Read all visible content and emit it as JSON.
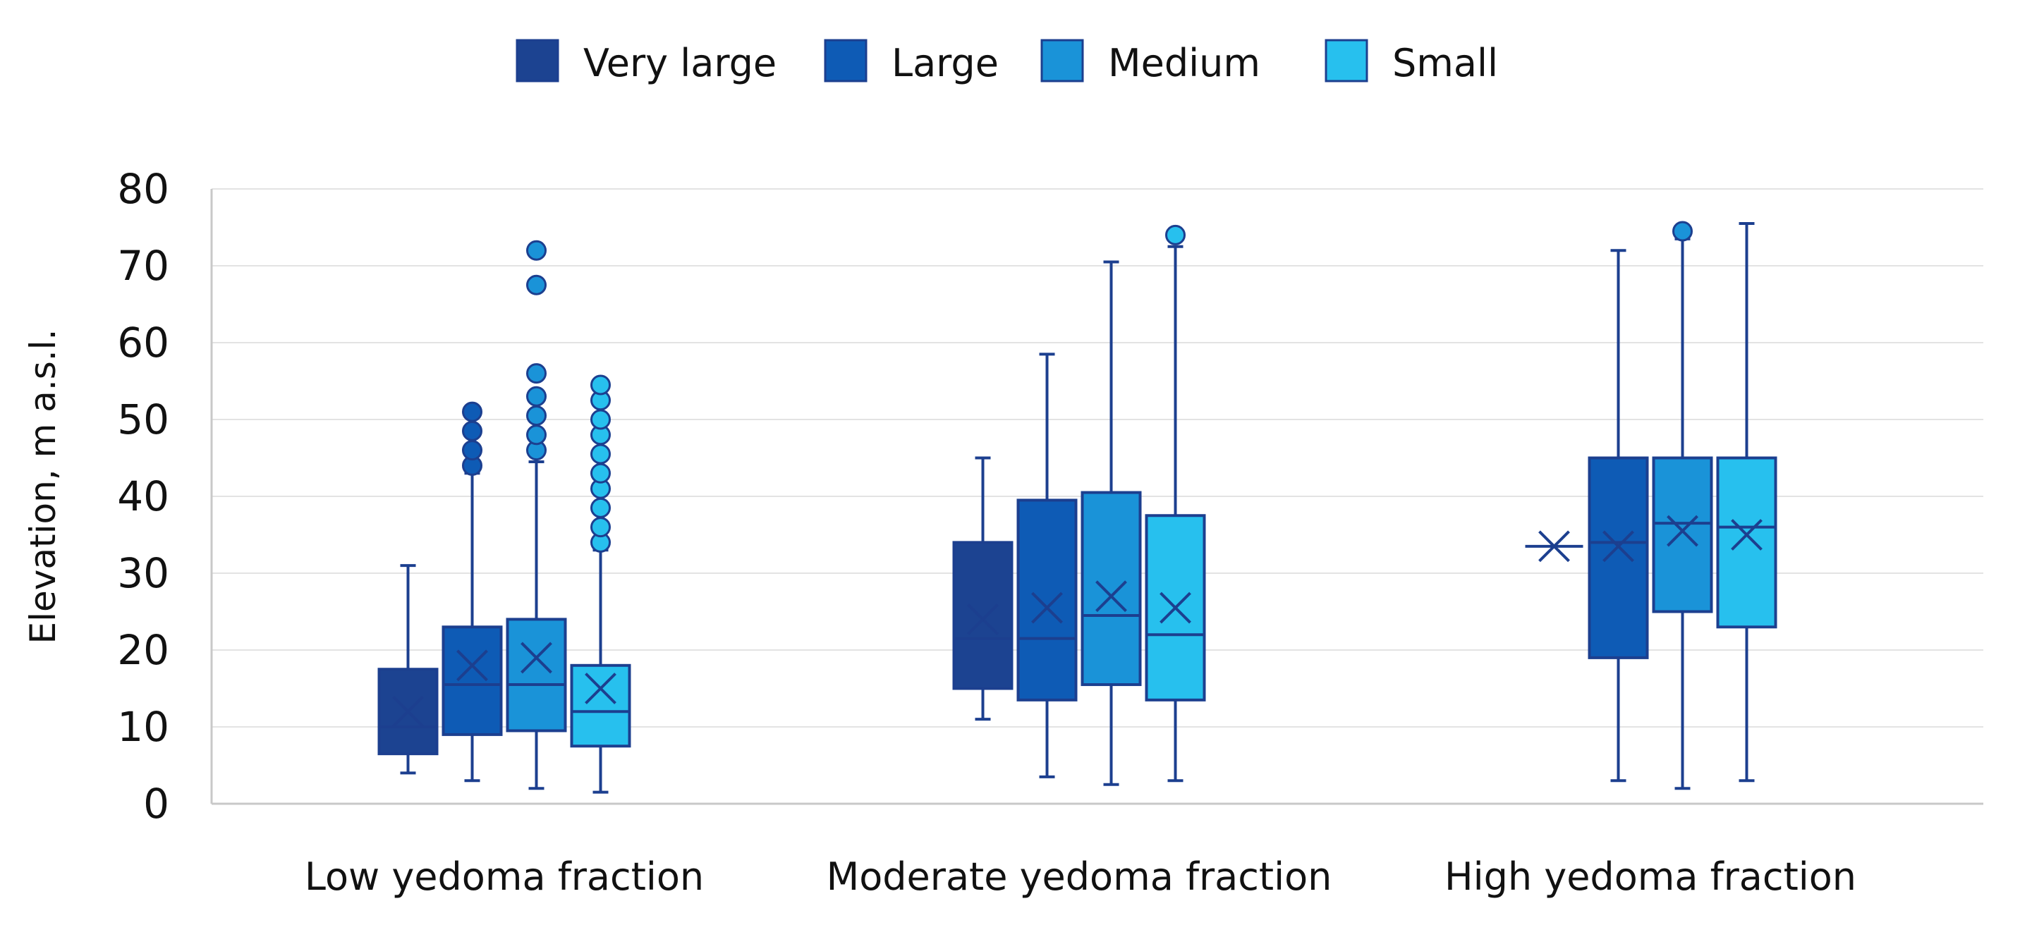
{
  "chart_data": {
    "type": "box",
    "title": "",
    "ylabel": "Elevation, m a.s.l.",
    "xlabel": "",
    "ylim": [
      0,
      80
    ],
    "yticks": [
      0,
      10,
      20,
      30,
      40,
      50,
      60,
      70,
      80
    ],
    "grid": true,
    "legend_position": "top-center",
    "categories": [
      "Low yedoma fraction",
      "Moderate yedoma fraction",
      "High yedoma fraction"
    ],
    "series": [
      {
        "name": "Very large",
        "color": "#1c4391",
        "boxes": [
          {
            "min": 4,
            "q1": 6.5,
            "median": 10,
            "q3": 17.5,
            "max": 31,
            "mean": 12,
            "outliers": []
          },
          {
            "min": 11,
            "q1": 15,
            "median": 21.5,
            "q3": 34,
            "max": 45,
            "mean": 24,
            "outliers": []
          },
          {
            "min": 33.5,
            "q1": 33.5,
            "median": 33.5,
            "q3": 33.5,
            "max": 33.5,
            "mean": 33.5,
            "outliers": []
          }
        ]
      },
      {
        "name": "Large",
        "color": "#0e5bb5",
        "boxes": [
          {
            "min": 3,
            "q1": 9,
            "median": 15.5,
            "q3": 23,
            "max": 43,
            "mean": 18,
            "outliers": [
              44,
              46,
              48.5,
              51
            ]
          },
          {
            "min": 3.5,
            "q1": 13.5,
            "median": 21.5,
            "q3": 39.5,
            "max": 58.5,
            "mean": 25.5,
            "outliers": []
          },
          {
            "min": 3,
            "q1": 19,
            "median": 34,
            "q3": 45,
            "max": 72,
            "mean": 33.5,
            "outliers": []
          }
        ]
      },
      {
        "name": "Medium",
        "color": "#1a93d8",
        "boxes": [
          {
            "min": 2,
            "q1": 9.5,
            "median": 15.5,
            "q3": 24,
            "max": 44.5,
            "mean": 19,
            "outliers": [
              46,
              48,
              50.5,
              53,
              56,
              67.5,
              72
            ]
          },
          {
            "min": 2.5,
            "q1": 15.5,
            "median": 24.5,
            "q3": 40.5,
            "max": 70.5,
            "mean": 27,
            "outliers": []
          },
          {
            "min": 2,
            "q1": 25,
            "median": 36.5,
            "q3": 45,
            "max": 73.5,
            "mean": 35.5,
            "outliers": [
              74.5
            ]
          }
        ]
      },
      {
        "name": "Small",
        "color": "#27c0ee",
        "boxes": [
          {
            "min": 1.5,
            "q1": 7.5,
            "median": 12,
            "q3": 18,
            "max": 33,
            "mean": 15,
            "outliers": [
              34,
              36,
              38.5,
              41,
              43,
              45.5,
              48,
              50,
              52.5,
              54.5
            ]
          },
          {
            "min": 3,
            "q1": 13.5,
            "median": 22,
            "q3": 37.5,
            "max": 72.5,
            "mean": 25.5,
            "outliers": [
              74
            ]
          },
          {
            "min": 3,
            "q1": 23,
            "median": 36,
            "q3": 45,
            "max": 75.5,
            "mean": 35,
            "outliers": []
          }
        ]
      }
    ]
  }
}
